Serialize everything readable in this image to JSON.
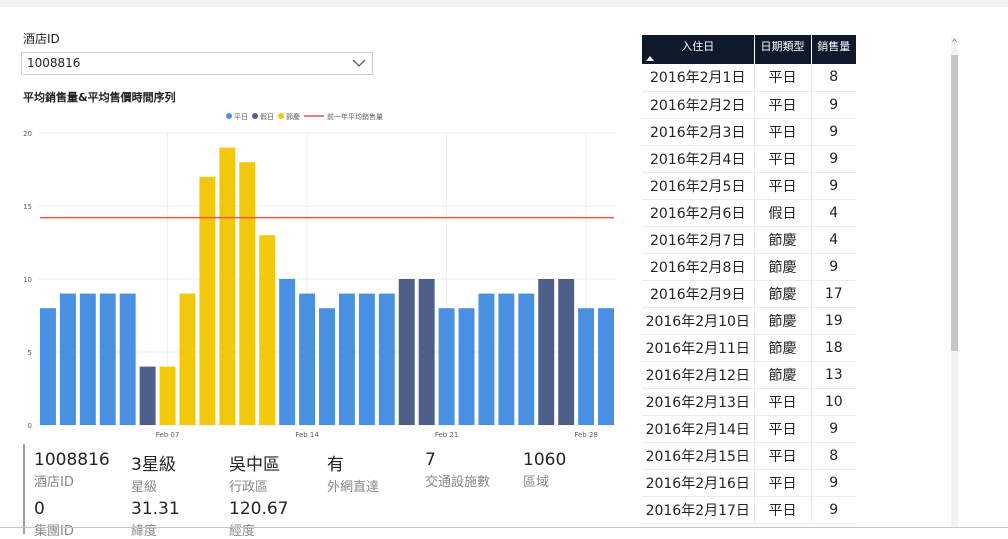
{
  "filter": {
    "label": "酒店ID",
    "value": "1008816"
  },
  "chart_title": "平均銷售量&平均售價時間序列",
  "legend": {
    "items": [
      "平日",
      "假日",
      "節慶"
    ],
    "line_label": "前一年平均銷售量"
  },
  "colors": {
    "weekday": "#4a90e2",
    "holiday": "#4e5f8a",
    "festival": "#f2c80f",
    "line": "#e05a4e"
  },
  "chart_data": {
    "type": "bar",
    "title": "平均銷售量&平均售價時間序列",
    "xlabel": "",
    "ylabel": "",
    "ylim": [
      0,
      20
    ],
    "yticks": [
      "0",
      "5",
      "10",
      "15",
      "20"
    ],
    "xticks": [
      "Feb 07",
      "Feb 14",
      "Feb 21",
      "Feb 28"
    ],
    "xtick_days": [
      7,
      14,
      21,
      28
    ],
    "days": [
      1,
      2,
      3,
      4,
      5,
      6,
      7,
      8,
      9,
      10,
      11,
      12,
      13,
      14,
      15,
      16,
      17,
      18,
      19,
      20,
      21,
      22,
      23,
      24,
      25,
      26,
      27,
      28,
      29
    ],
    "values": [
      8,
      9,
      9,
      9,
      9,
      4,
      4,
      9,
      17,
      19,
      18,
      13,
      10,
      9,
      8,
      9,
      9,
      9,
      10,
      10,
      8,
      8,
      9,
      9,
      9,
      10,
      10,
      8,
      8
    ],
    "types": [
      "平日",
      "平日",
      "平日",
      "平日",
      "平日",
      "假日",
      "節慶",
      "節慶",
      "節慶",
      "節慶",
      "節慶",
      "節慶",
      "平日",
      "平日",
      "平日",
      "平日",
      "平日",
      "平日",
      "假日",
      "假日",
      "平日",
      "平日",
      "平日",
      "平日",
      "平日",
      "假日",
      "假日",
      "平日",
      "平日"
    ],
    "reference_line": 14.2,
    "grid": true,
    "legend_position": "top-center"
  },
  "card": {
    "row1": [
      {
        "value": "1008816",
        "label": "酒店ID"
      },
      {
        "value": "3星級",
        "label": "星級"
      },
      {
        "value": "吳中區",
        "label": "行政區"
      },
      {
        "value": "有",
        "label": "外網直達"
      },
      {
        "value": "7",
        "label": "交通設施數"
      },
      {
        "value": "1060",
        "label": "區域"
      }
    ],
    "row2": [
      {
        "value": "0",
        "label": "集團ID"
      },
      {
        "value": "31.31",
        "label": "緯度"
      },
      {
        "value": "120.67",
        "label": "經度"
      }
    ]
  },
  "table": {
    "headers": [
      "入住日",
      "日期類型",
      "銷售量"
    ],
    "rows": [
      [
        "2016年2月1日",
        "平日",
        "8"
      ],
      [
        "2016年2月2日",
        "平日",
        "9"
      ],
      [
        "2016年2月3日",
        "平日",
        "9"
      ],
      [
        "2016年2月4日",
        "平日",
        "9"
      ],
      [
        "2016年2月5日",
        "平日",
        "9"
      ],
      [
        "2016年2月6日",
        "假日",
        "4"
      ],
      [
        "2016年2月7日",
        "節慶",
        "4"
      ],
      [
        "2016年2月8日",
        "節慶",
        "9"
      ],
      [
        "2016年2月9日",
        "節慶",
        "17"
      ],
      [
        "2016年2月10日",
        "節慶",
        "19"
      ],
      [
        "2016年2月11日",
        "節慶",
        "18"
      ],
      [
        "2016年2月12日",
        "節慶",
        "13"
      ],
      [
        "2016年2月13日",
        "平日",
        "10"
      ],
      [
        "2016年2月14日",
        "平日",
        "9"
      ],
      [
        "2016年2月15日",
        "平日",
        "8"
      ],
      [
        "2016年2月16日",
        "平日",
        "9"
      ],
      [
        "2016年2月17日",
        "平日",
        "9"
      ]
    ]
  }
}
